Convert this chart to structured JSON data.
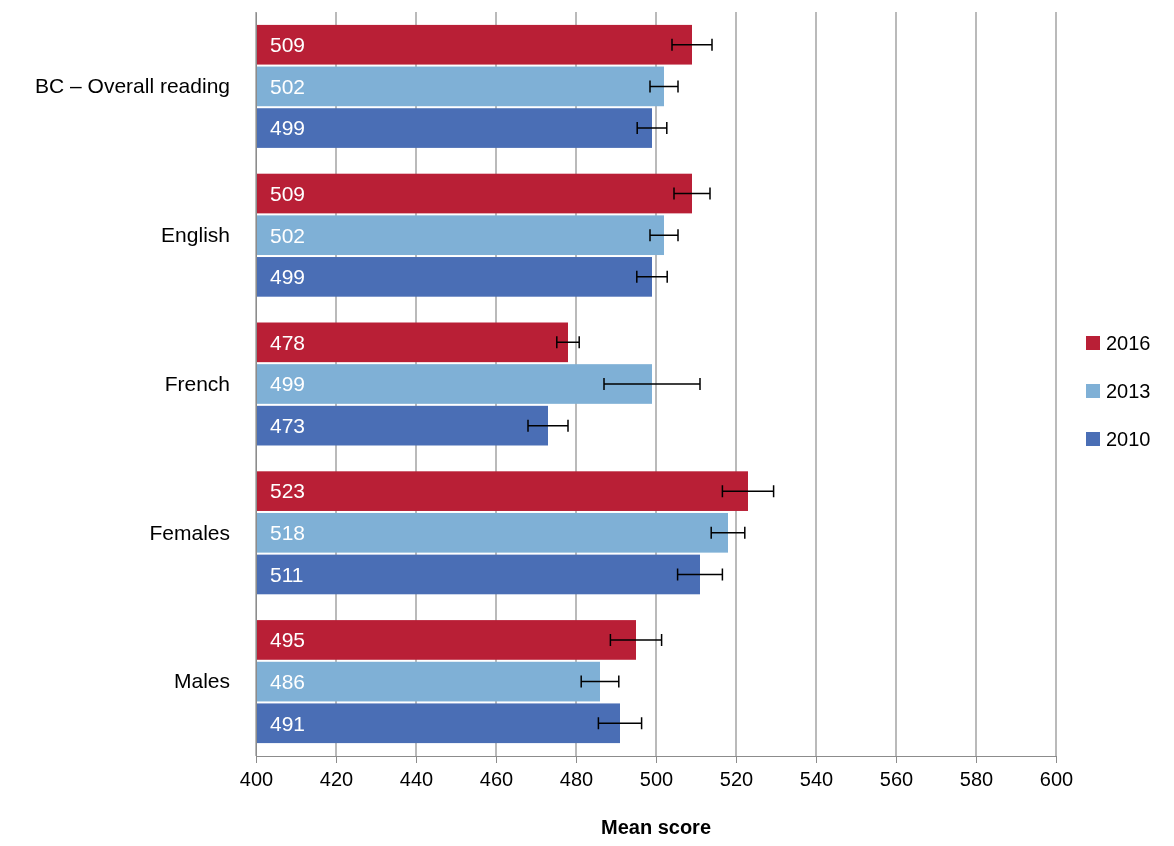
{
  "chart_data": {
    "type": "bar",
    "orientation": "horizontal",
    "xlabel": "Mean score",
    "categories": [
      "BC – Overall reading",
      "English",
      "French",
      "Females",
      "Males"
    ],
    "series": [
      {
        "name": "2016",
        "color": "#b91f36",
        "values": [
          509,
          509,
          478,
          523,
          495
        ],
        "errors": [
          5,
          4.5,
          2.8,
          6.4,
          6.4
        ]
      },
      {
        "name": "2013",
        "color": "#7fb0d6",
        "values": [
          502,
          502,
          499,
          518,
          486
        ],
        "errors": [
          3.5,
          3.5,
          12,
          4.2,
          4.7
        ]
      },
      {
        "name": "2010",
        "color": "#4a6eb5",
        "values": [
          499,
          499,
          473,
          511,
          491
        ],
        "errors": [
          3.7,
          3.8,
          5,
          5.6,
          5.4
        ]
      }
    ],
    "xlim": [
      400,
      600
    ],
    "xticks": [
      400,
      420,
      440,
      460,
      480,
      500,
      520,
      540,
      560,
      580,
      600
    ],
    "grid": "x",
    "legend": "right",
    "data_labels": true
  }
}
